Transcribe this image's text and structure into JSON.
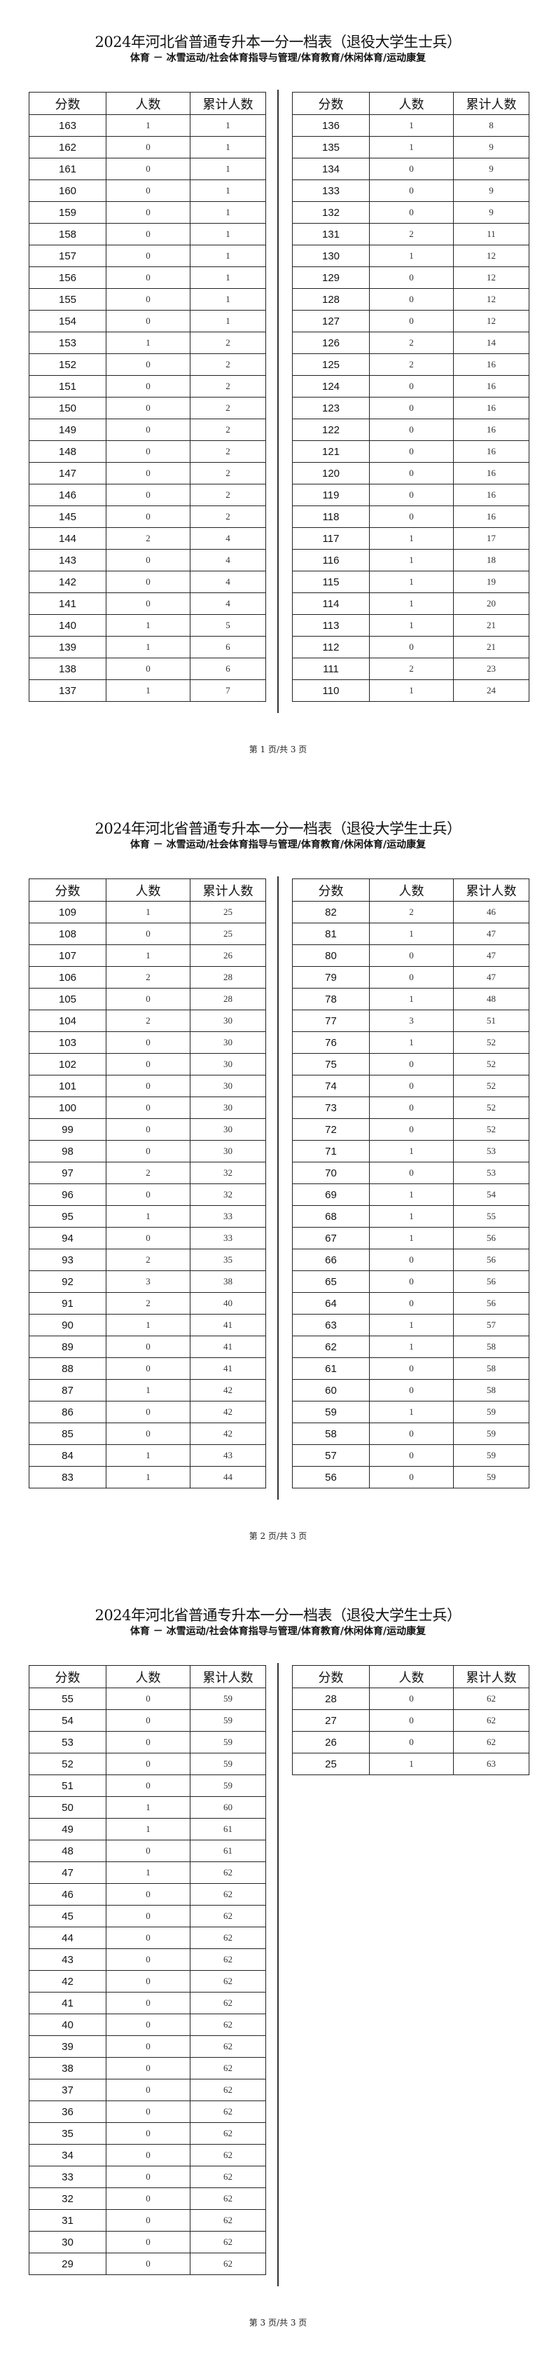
{
  "title": "2024年河北省普通专升本一分一档表（退役大学生士兵）",
  "subtitle": "体育 － 冰雪运动/社会体育指导与管理/体育教育/休闲体育/运动康复",
  "headers": [
    "分数",
    "人数",
    "累计人数"
  ],
  "pages": [
    {
      "footer": "第 1 页/共 3 页",
      "left": [
        [
          163,
          1,
          1
        ],
        [
          162,
          0,
          1
        ],
        [
          161,
          0,
          1
        ],
        [
          160,
          0,
          1
        ],
        [
          159,
          0,
          1
        ],
        [
          158,
          0,
          1
        ],
        [
          157,
          0,
          1
        ],
        [
          156,
          0,
          1
        ],
        [
          155,
          0,
          1
        ],
        [
          154,
          0,
          1
        ],
        [
          153,
          1,
          2
        ],
        [
          152,
          0,
          2
        ],
        [
          151,
          0,
          2
        ],
        [
          150,
          0,
          2
        ],
        [
          149,
          0,
          2
        ],
        [
          148,
          0,
          2
        ],
        [
          147,
          0,
          2
        ],
        [
          146,
          0,
          2
        ],
        [
          145,
          0,
          2
        ],
        [
          144,
          2,
          4
        ],
        [
          143,
          0,
          4
        ],
        [
          142,
          0,
          4
        ],
        [
          141,
          0,
          4
        ],
        [
          140,
          1,
          5
        ],
        [
          139,
          1,
          6
        ],
        [
          138,
          0,
          6
        ],
        [
          137,
          1,
          7
        ]
      ],
      "right": [
        [
          136,
          1,
          8
        ],
        [
          135,
          1,
          9
        ],
        [
          134,
          0,
          9
        ],
        [
          133,
          0,
          9
        ],
        [
          132,
          0,
          9
        ],
        [
          131,
          2,
          11
        ],
        [
          130,
          1,
          12
        ],
        [
          129,
          0,
          12
        ],
        [
          128,
          0,
          12
        ],
        [
          127,
          0,
          12
        ],
        [
          126,
          2,
          14
        ],
        [
          125,
          2,
          16
        ],
        [
          124,
          0,
          16
        ],
        [
          123,
          0,
          16
        ],
        [
          122,
          0,
          16
        ],
        [
          121,
          0,
          16
        ],
        [
          120,
          0,
          16
        ],
        [
          119,
          0,
          16
        ],
        [
          118,
          0,
          16
        ],
        [
          117,
          1,
          17
        ],
        [
          116,
          1,
          18
        ],
        [
          115,
          1,
          19
        ],
        [
          114,
          1,
          20
        ],
        [
          113,
          1,
          21
        ],
        [
          112,
          0,
          21
        ],
        [
          111,
          2,
          23
        ],
        [
          110,
          1,
          24
        ]
      ]
    },
    {
      "footer": "第 2 页/共 3 页",
      "left": [
        [
          109,
          1,
          25
        ],
        [
          108,
          0,
          25
        ],
        [
          107,
          1,
          26
        ],
        [
          106,
          2,
          28
        ],
        [
          105,
          0,
          28
        ],
        [
          104,
          2,
          30
        ],
        [
          103,
          0,
          30
        ],
        [
          102,
          0,
          30
        ],
        [
          101,
          0,
          30
        ],
        [
          100,
          0,
          30
        ],
        [
          99,
          0,
          30
        ],
        [
          98,
          0,
          30
        ],
        [
          97,
          2,
          32
        ],
        [
          96,
          0,
          32
        ],
        [
          95,
          1,
          33
        ],
        [
          94,
          0,
          33
        ],
        [
          93,
          2,
          35
        ],
        [
          92,
          3,
          38
        ],
        [
          91,
          2,
          40
        ],
        [
          90,
          1,
          41
        ],
        [
          89,
          0,
          41
        ],
        [
          88,
          0,
          41
        ],
        [
          87,
          1,
          42
        ],
        [
          86,
          0,
          42
        ],
        [
          85,
          0,
          42
        ],
        [
          84,
          1,
          43
        ],
        [
          83,
          1,
          44
        ]
      ],
      "right": [
        [
          82,
          2,
          46
        ],
        [
          81,
          1,
          47
        ],
        [
          80,
          0,
          47
        ],
        [
          79,
          0,
          47
        ],
        [
          78,
          1,
          48
        ],
        [
          77,
          3,
          51
        ],
        [
          76,
          1,
          52
        ],
        [
          75,
          0,
          52
        ],
        [
          74,
          0,
          52
        ],
        [
          73,
          0,
          52
        ],
        [
          72,
          0,
          52
        ],
        [
          71,
          1,
          53
        ],
        [
          70,
          0,
          53
        ],
        [
          69,
          1,
          54
        ],
        [
          68,
          1,
          55
        ],
        [
          67,
          1,
          56
        ],
        [
          66,
          0,
          56
        ],
        [
          65,
          0,
          56
        ],
        [
          64,
          0,
          56
        ],
        [
          63,
          1,
          57
        ],
        [
          62,
          1,
          58
        ],
        [
          61,
          0,
          58
        ],
        [
          60,
          0,
          58
        ],
        [
          59,
          1,
          59
        ],
        [
          58,
          0,
          59
        ],
        [
          57,
          0,
          59
        ],
        [
          56,
          0,
          59
        ]
      ]
    },
    {
      "footer": "第 3 页/共 3 页",
      "left": [
        [
          55,
          0,
          59
        ],
        [
          54,
          0,
          59
        ],
        [
          53,
          0,
          59
        ],
        [
          52,
          0,
          59
        ],
        [
          51,
          0,
          59
        ],
        [
          50,
          1,
          60
        ],
        [
          49,
          1,
          61
        ],
        [
          48,
          0,
          61
        ],
        [
          47,
          1,
          62
        ],
        [
          46,
          0,
          62
        ],
        [
          45,
          0,
          62
        ],
        [
          44,
          0,
          62
        ],
        [
          43,
          0,
          62
        ],
        [
          42,
          0,
          62
        ],
        [
          41,
          0,
          62
        ],
        [
          40,
          0,
          62
        ],
        [
          39,
          0,
          62
        ],
        [
          38,
          0,
          62
        ],
        [
          37,
          0,
          62
        ],
        [
          36,
          0,
          62
        ],
        [
          35,
          0,
          62
        ],
        [
          34,
          0,
          62
        ],
        [
          33,
          0,
          62
        ],
        [
          32,
          0,
          62
        ],
        [
          31,
          0,
          62
        ],
        [
          30,
          0,
          62
        ],
        [
          29,
          0,
          62
        ]
      ],
      "right": [
        [
          28,
          0,
          62
        ],
        [
          27,
          0,
          62
        ],
        [
          26,
          0,
          62
        ],
        [
          25,
          1,
          63
        ]
      ]
    }
  ]
}
